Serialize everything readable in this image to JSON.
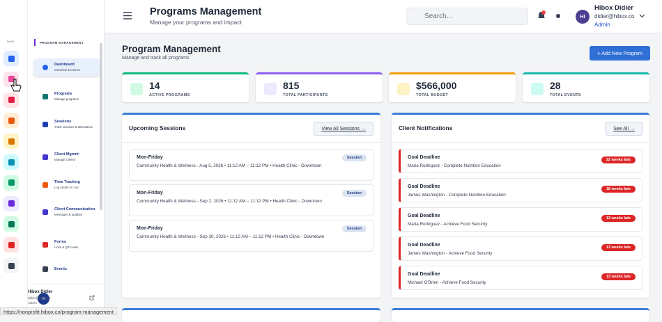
{
  "header": {
    "title": "Programs Management",
    "subtitle": "Manage your programs and impact",
    "search_placeholder": "Search...",
    "user": {
      "initials": "HI",
      "name": "Hibox Didier",
      "email": "didier@hibox.co",
      "role": "Admin"
    }
  },
  "sidebar": {
    "rail_label": "MAIN",
    "section_label": "PROGRAM MANAGEMENT",
    "nav": [
      {
        "title": "Dashboard",
        "subtitle": "Overview & metrics"
      },
      {
        "title": "Programs",
        "subtitle": "Manage programs"
      },
      {
        "title": "Sessions",
        "subtitle": "Track sessions & attendance"
      },
      {
        "title": "Client Mgmnt",
        "subtitle": "Manage Clients"
      },
      {
        "title": "Time Tracking",
        "subtitle": "Log clients in / out"
      },
      {
        "title": "Client Communication",
        "subtitle": "Messages & updates"
      },
      {
        "title": "Forms",
        "subtitle": "Links & QR codes"
      },
      {
        "title": "Events"
      }
    ],
    "user": {
      "initials": "HI",
      "name": "Hibox Didier",
      "email": "didier@hibox.co",
      "role": "Admin"
    }
  },
  "main": {
    "title": "Program Management",
    "subtitle": "Manage and track all programs",
    "add_button": "Add New Program",
    "stats": [
      {
        "value": "14",
        "label": "ACTIVE PROGRAMS"
      },
      {
        "value": "815",
        "label": "TOTAL PARTICIPANTS"
      },
      {
        "value": "$566,000",
        "label": "TOTAL BUDGET"
      },
      {
        "value": "28",
        "label": "TOTAL EVENTS"
      }
    ],
    "sessions": {
      "title": "Upcoming Sessions",
      "button": "View All Sessions →",
      "items": [
        {
          "title": "Mon-Friday",
          "detail": "Community Health & Wellness - Aug 5, 2026 • 11:12 AM – 11:12 PM • Health Clinic - Downtown",
          "badge": "Session"
        },
        {
          "title": "Mon-Friday",
          "detail": "Community Health & Wellness - Sep 2, 2026 • 11:12 AM – 11:12 PM • Health Clinic - Downtown",
          "badge": "Session"
        },
        {
          "title": "Mon-Friday",
          "detail": "Community Health & Wellness - Sep 30, 2026 • 11:12 AM – 11:12 PM • Health Clinic - Downtown",
          "badge": "Session"
        }
      ]
    },
    "notifications": {
      "title": "Client Notifications",
      "button": "See All →",
      "items": [
        {
          "title": "Goal Deadline",
          "detail": "Maria Rodriguez - Complete Nutrition Education",
          "badge": "22 weeks late"
        },
        {
          "title": "Goal Deadline",
          "detail": "James Washington - Complete Nutrition Education",
          "badge": "18 weeks late"
        },
        {
          "title": "Goal Deadline",
          "detail": "Maria Rodriguez - Achieve Food Security",
          "badge": "13 weeks late"
        },
        {
          "title": "Goal Deadline",
          "detail": "James Washington - Achieve Food Security",
          "badge": "13 weeks late"
        },
        {
          "title": "Goal Deadline",
          "detail": "Michael O'Brien - Achieve Food Security",
          "badge": "13 weeks late"
        }
      ]
    }
  },
  "status_bar": {
    "url": "https://nonprofit.hibox.co/program-management"
  }
}
